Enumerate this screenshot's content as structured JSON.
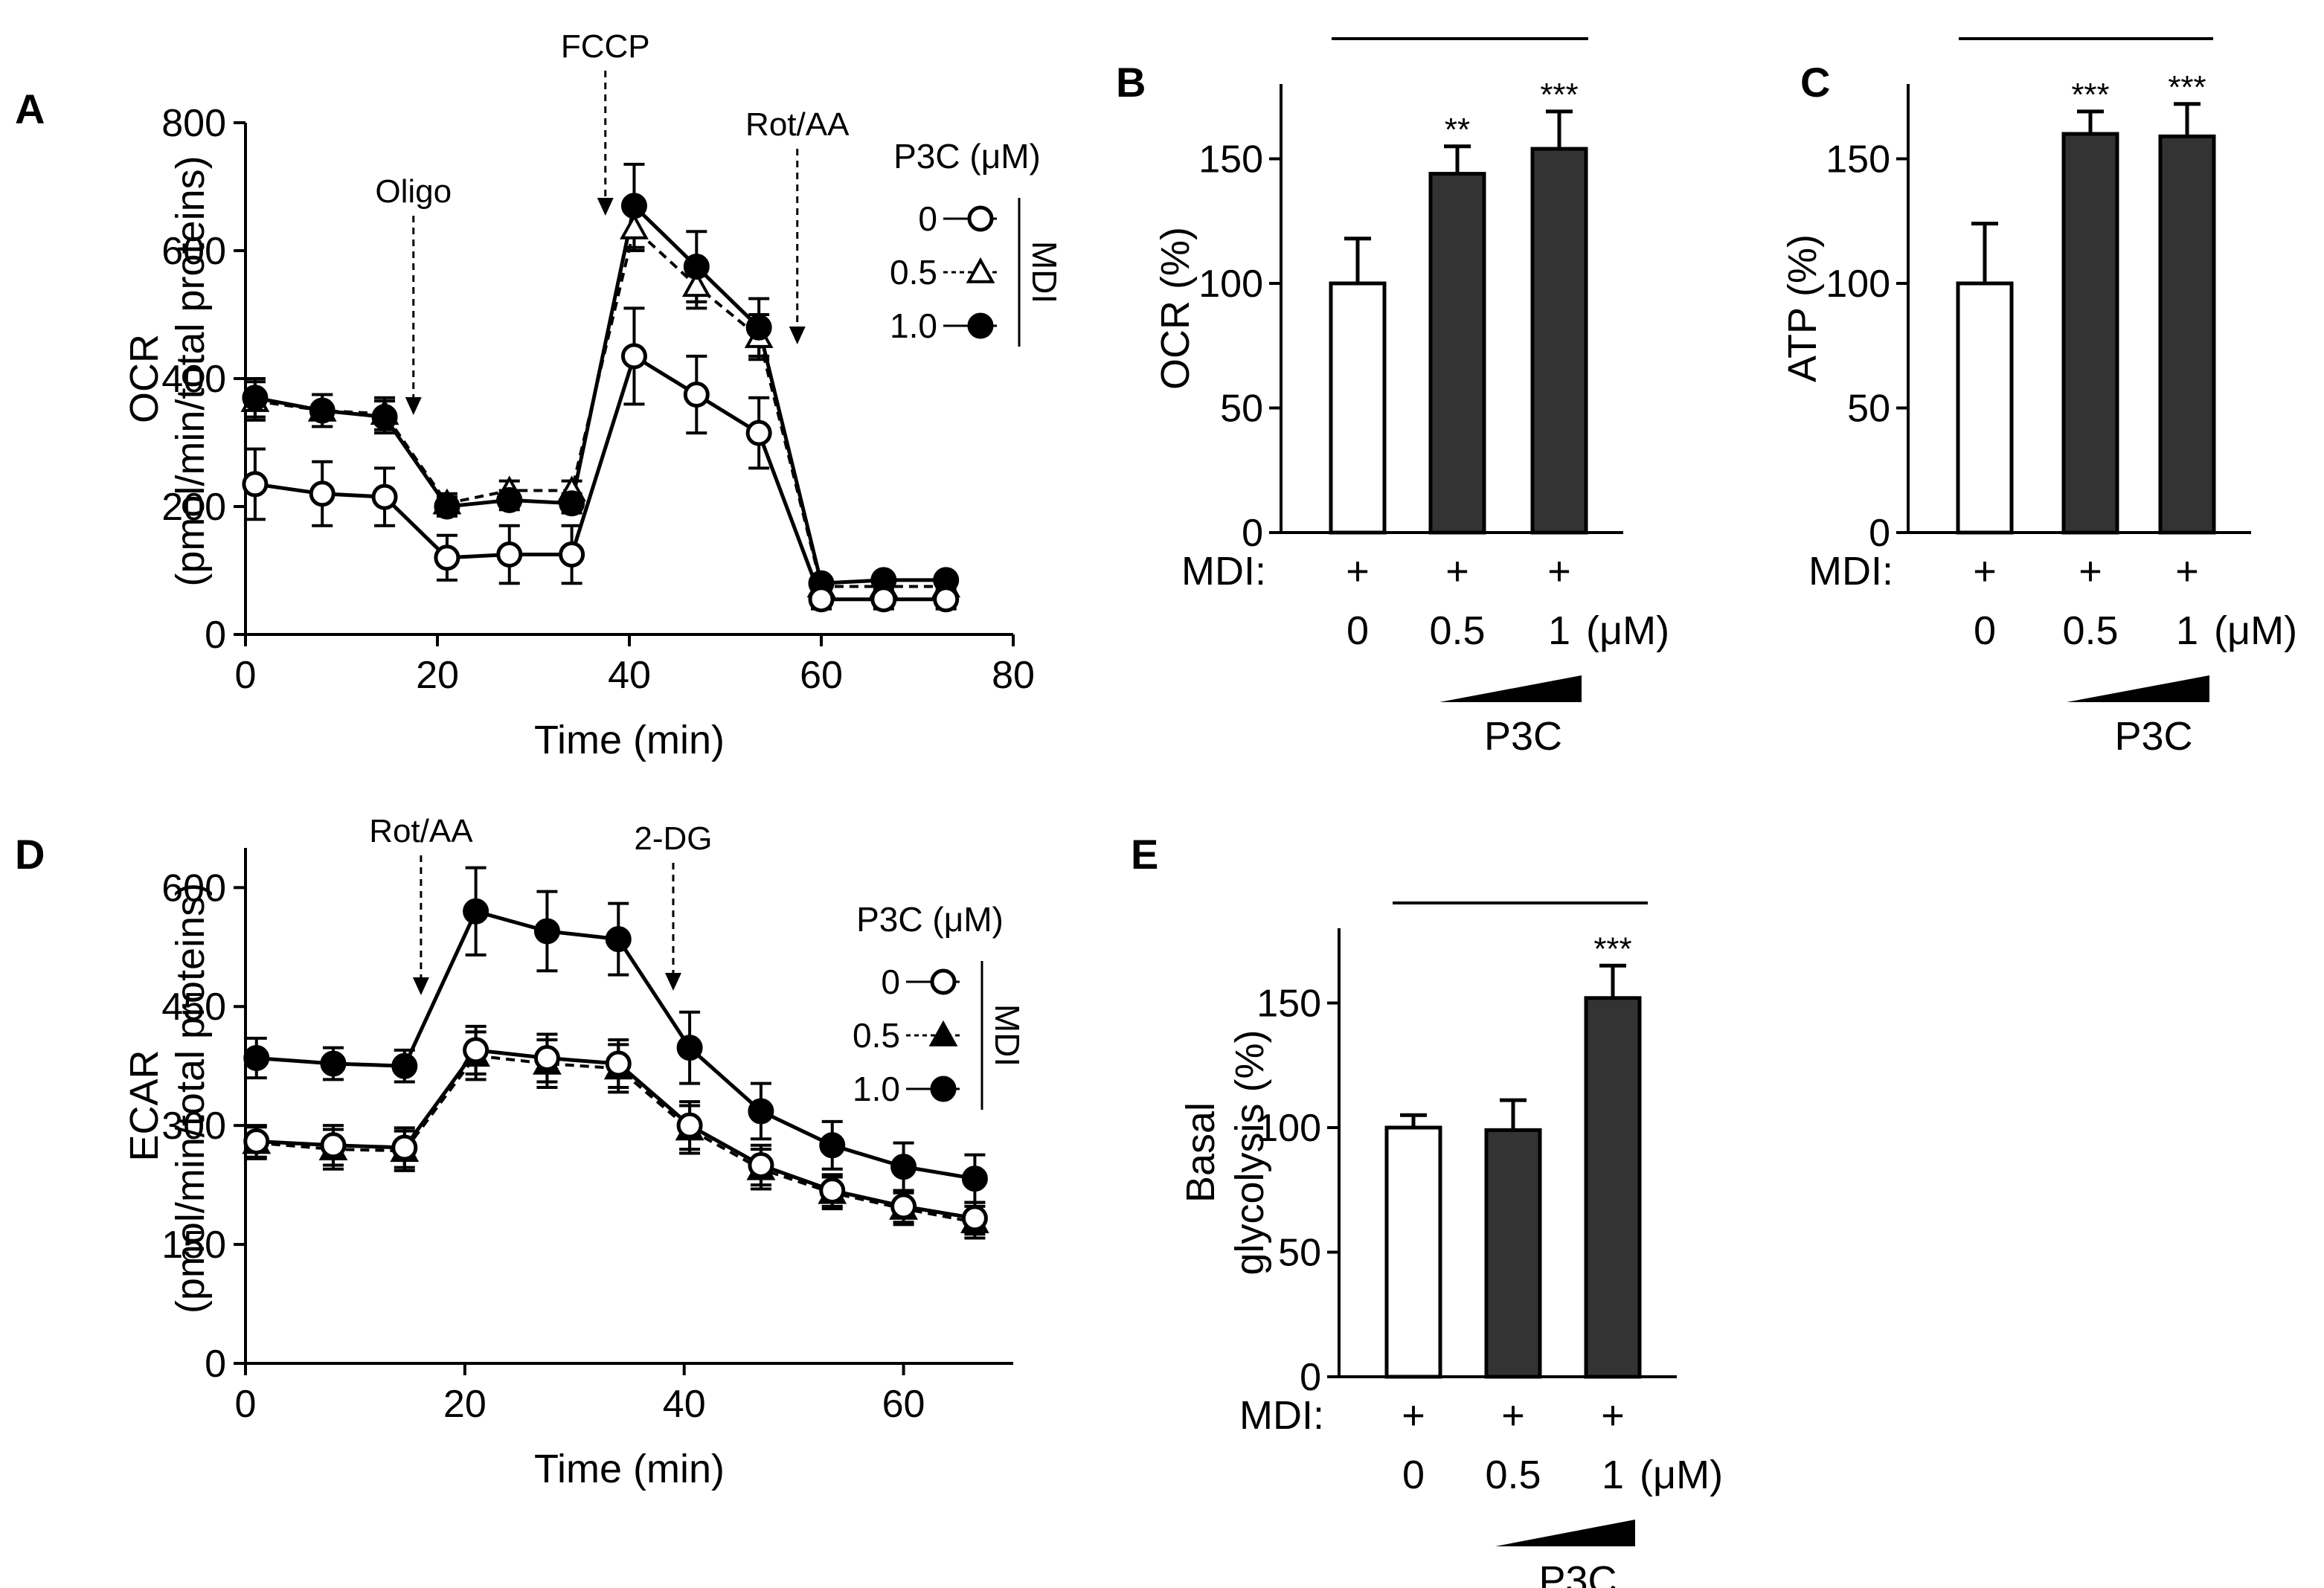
{
  "colors": {
    "ink": "#000000",
    "bar_fill": "#333333",
    "open_fill": "#ffffff"
  },
  "legend": {
    "title": "P3C (μM)",
    "entries": [
      "0",
      "0.5",
      "1.0"
    ],
    "group_label": "MDI"
  },
  "conditions": {
    "row_label": "MDI:",
    "plus": "+",
    "doses": [
      "0",
      "0.5",
      "1"
    ],
    "unit": "(μM)",
    "drug": "P3C"
  },
  "chart_data": [
    {
      "panel": "A",
      "type": "line",
      "xlabel": "Time (min)",
      "ylabel": "OCR",
      "ylabel2": "(pmol/min/total proteins)",
      "xlim": [
        0,
        80
      ],
      "ylim": [
        0,
        800
      ],
      "xticks": [
        0,
        20,
        40,
        60,
        80
      ],
      "yticks": [
        0,
        200,
        400,
        600,
        800
      ],
      "x": [
        1,
        8,
        14.5,
        21,
        27.5,
        34,
        40.5,
        47,
        53.5,
        60,
        66.5,
        73
      ],
      "annotations": [
        {
          "text": "Oligo",
          "x": 17.5
        },
        {
          "text": "FCCP",
          "x": 37.5
        },
        {
          "text": "Rot/AA",
          "x": 57.5
        }
      ],
      "series": [
        {
          "name": "0",
          "marker": "circle-open",
          "dashed": false,
          "values": [
            235,
            220,
            215,
            120,
            125,
            125,
            435,
            375,
            315,
            55,
            55,
            55
          ],
          "errors": [
            55,
            50,
            45,
            35,
            45,
            45,
            75,
            60,
            55,
            15,
            15,
            15
          ]
        },
        {
          "name": "0.5",
          "marker": "triangle-open",
          "dashed": true,
          "values": [
            365,
            350,
            345,
            205,
            225,
            225,
            635,
            545,
            465,
            75,
            75,
            75
          ],
          "errors": [
            30,
            25,
            25,
            15,
            15,
            15,
            35,
            35,
            35,
            10,
            10,
            10
          ]
        },
        {
          "name": "1.0",
          "marker": "circle-filled",
          "dashed": false,
          "values": [
            370,
            350,
            340,
            200,
            210,
            205,
            670,
            575,
            480,
            80,
            85,
            85
          ],
          "errors": [
            30,
            25,
            25,
            15,
            15,
            15,
            65,
            55,
            45,
            10,
            10,
            10
          ]
        }
      ]
    },
    {
      "panel": "B",
      "type": "bar",
      "ylabel": "OCR (%)",
      "ylim": [
        0,
        180
      ],
      "yticks": [
        0,
        50,
        100,
        150
      ],
      "values": [
        100,
        144,
        154
      ],
      "errors": [
        18,
        11,
        15
      ],
      "significance": [
        "",
        "**",
        "***"
      ],
      "filled": [
        false,
        true,
        true
      ]
    },
    {
      "panel": "C",
      "type": "bar",
      "ylabel": "ATP (%)",
      "ylim": [
        0,
        180
      ],
      "yticks": [
        0,
        50,
        100,
        150
      ],
      "values": [
        100,
        160,
        159
      ],
      "errors": [
        24,
        9,
        13
      ],
      "significance": [
        "",
        "***",
        "***"
      ],
      "filled": [
        false,
        true,
        true
      ]
    },
    {
      "panel": "D",
      "type": "line",
      "xlabel": "Time (min)",
      "ylabel": "ECAR",
      "ylabel2": "(pmol/min/total proteins)",
      "xlim": [
        0,
        70
      ],
      "ylim": [
        0,
        650
      ],
      "xticks": [
        0,
        20,
        40,
        60
      ],
      "yticks": [
        0,
        150,
        300,
        450,
        600
      ],
      "x": [
        1,
        8,
        14.5,
        21,
        27.5,
        34,
        40.5,
        47,
        53.5,
        60,
        66.5
      ],
      "annotations": [
        {
          "text": "Rot/AA",
          "x": 16
        },
        {
          "text": "2-DG",
          "x": 39
        }
      ],
      "series": [
        {
          "name": "0",
          "marker": "circle-open",
          "dashed": false,
          "values": [
            280,
            275,
            272,
            395,
            385,
            378,
            300,
            250,
            218,
            198,
            183
          ],
          "errors": [
            20,
            25,
            25,
            30,
            30,
            30,
            30,
            25,
            20,
            20,
            20
          ]
        },
        {
          "name": "0.5",
          "marker": "triangle-filled",
          "dashed": true,
          "values": [
            278,
            270,
            268,
            388,
            378,
            372,
            295,
            245,
            215,
            195,
            178
          ],
          "errors": [
            20,
            25,
            25,
            30,
            30,
            30,
            30,
            25,
            20,
            20,
            20
          ]
        },
        {
          "name": "1.0",
          "marker": "circle-filled",
          "dashed": false,
          "values": [
            385,
            378,
            375,
            570,
            545,
            535,
            398,
            318,
            275,
            248,
            233
          ],
          "errors": [
            25,
            20,
            20,
            55,
            50,
            45,
            45,
            35,
            30,
            30,
            30
          ]
        }
      ]
    },
    {
      "panel": "E",
      "type": "bar",
      "ylabel": "Basal",
      "ylabel2": "glycolysis (%)",
      "ylim": [
        0,
        180
      ],
      "yticks": [
        0,
        50,
        100,
        150
      ],
      "values": [
        100,
        99,
        152
      ],
      "errors": [
        5,
        12,
        13
      ],
      "significance": [
        "",
        "",
        "***"
      ],
      "filled": [
        false,
        true,
        true
      ]
    }
  ]
}
